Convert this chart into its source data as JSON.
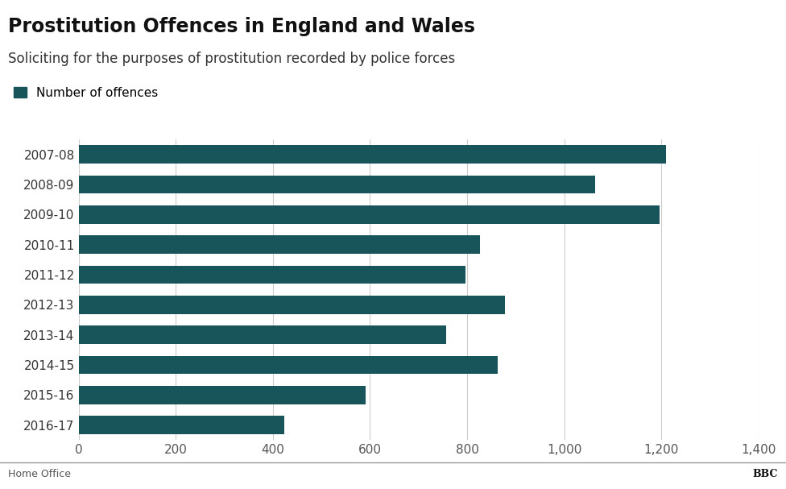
{
  "title": "Prostitution Offences in England and Wales",
  "subtitle": "Soliciting for the purposes of prostitution recorded by police forces",
  "legend_label": "Number of offences",
  "categories": [
    "2007-08",
    "2008-09",
    "2009-10",
    "2010-11",
    "2011-12",
    "2012-13",
    "2013-14",
    "2014-15",
    "2015-16",
    "2016-17"
  ],
  "values": [
    1209,
    1063,
    1196,
    826,
    796,
    878,
    757,
    863,
    591,
    424
  ],
  "bar_color": "#17555a",
  "background_color": "#ffffff",
  "xlim": [
    0,
    1400
  ],
  "xticks": [
    0,
    200,
    400,
    600,
    800,
    1000,
    1200,
    1400
  ],
  "xtick_labels": [
    "0",
    "200",
    "400",
    "600",
    "800",
    "1,000",
    "1,200",
    "1,400"
  ],
  "title_fontsize": 17,
  "subtitle_fontsize": 12,
  "legend_fontsize": 11,
  "tick_fontsize": 11,
  "footer_left": "Home Office",
  "footer_right": "BBC",
  "grid_color": "#cccccc",
  "footer_line_color": "#999999"
}
